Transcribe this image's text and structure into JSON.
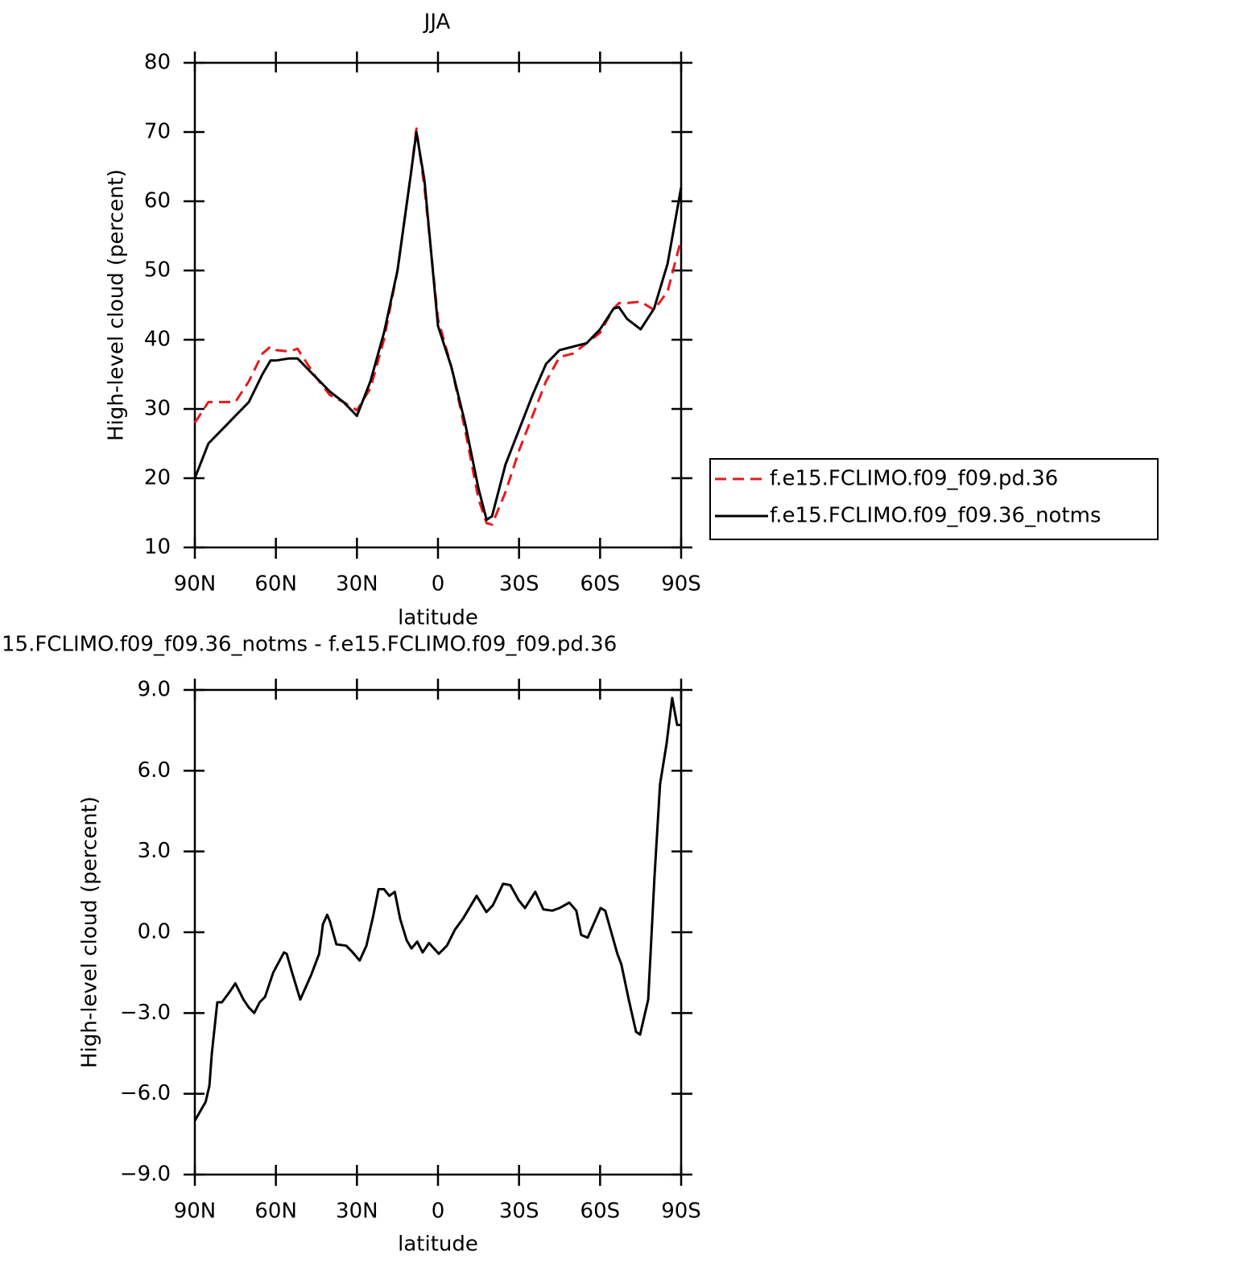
{
  "chart_data": [
    {
      "type": "line",
      "title": "JJA",
      "xlabel": "latitude",
      "ylabel": "High-level cloud (percent)",
      "x": [
        90,
        85,
        80,
        75,
        70,
        65,
        62,
        60,
        55,
        52,
        50,
        45,
        40,
        35,
        30,
        25,
        20,
        15,
        10,
        8,
        5,
        0,
        -5,
        -10,
        -15,
        -18,
        -20,
        -25,
        -30,
        -35,
        -40,
        -45,
        -50,
        -55,
        -60,
        -65,
        -67,
        -70,
        -75,
        -80,
        -85,
        -90
      ],
      "series": [
        {
          "name": "f.e15.FCLIMO.f09_f09.pd.36",
          "color": "#e8191c",
          "line_style": "dashed",
          "values": [
            28,
            31,
            31,
            31,
            34,
            38,
            39,
            38.5,
            38.3,
            38.7,
            37.5,
            34.5,
            32,
            31,
            29.8,
            33,
            40,
            50,
            64,
            70.5,
            62,
            43,
            36,
            27,
            17,
            13.5,
            13.3,
            18,
            24,
            29,
            34,
            37.5,
            38,
            39.5,
            41,
            44.5,
            45.3,
            45.3,
            45.5,
            44.3,
            47,
            54.5
          ]
        },
        {
          "name": "f.e15.FCLIMO.f09_f09.36_notms",
          "color": "#000000",
          "line_style": "solid",
          "values": [
            20,
            25,
            27,
            29,
            31,
            35,
            37,
            37,
            37.3,
            37.3,
            36.5,
            34.5,
            32.5,
            31,
            29,
            34,
            41,
            50,
            64,
            70,
            63,
            42,
            36,
            28,
            18.5,
            14,
            14.5,
            22,
            27,
            32,
            36.5,
            38.5,
            39,
            39.5,
            41.5,
            44.5,
            44.7,
            43,
            41.5,
            44.5,
            51,
            62
          ]
        }
      ],
      "xlim": [
        90,
        -90
      ],
      "xticks": [
        {
          "value": 90,
          "label": "90N"
        },
        {
          "value": 60,
          "label": "60N"
        },
        {
          "value": 30,
          "label": "30N"
        },
        0,
        {
          "value": -30,
          "label": "30S"
        },
        {
          "value": -60,
          "label": "60S"
        },
        {
          "value": -90,
          "label": "90S"
        }
      ],
      "ylim": [
        10,
        80
      ],
      "yticks": [
        10,
        20,
        30,
        40,
        50,
        60,
        70,
        80
      ],
      "legend": "right"
    },
    {
      "type": "line",
      "title": "15.FCLIMO.f09_f09.36_notms - f.e15.FCLIMO.f09_f09.pd.36",
      "xlabel": "latitude",
      "ylabel": "High-level cloud (percent)",
      "x": [
        90,
        86,
        84.6,
        83.7,
        81.7,
        80,
        77,
        75,
        72,
        70,
        68,
        66,
        64,
        61,
        57,
        56,
        54,
        51,
        47,
        44,
        42.6,
        41,
        40,
        37.6,
        34,
        32,
        29,
        26.5,
        24,
        22,
        20,
        18,
        16,
        14,
        11.6,
        9.8,
        7.7,
        5.7,
        3.3,
        -0.3,
        -3.3,
        -6.3,
        -9.2,
        -14.3,
        -17.9,
        -20.3,
        -24.1,
        -26.8,
        -29.8,
        -32.2,
        -36,
        -39,
        -42.3,
        -45,
        -48.6,
        -51.2,
        -53,
        -55.4,
        -60.2,
        -61.9,
        -66.4,
        -67.9,
        -70.6,
        -73.3,
        -74.8,
        -77.8,
        -80.1,
        -82.2,
        -84.6,
        -86.7,
        -88.5,
        -90
      ],
      "series": [
        {
          "color": "#000000",
          "line_style": "solid",
          "values": [
            -7.0,
            -6.3,
            -5.7,
            -4.5,
            -2.6,
            -2.6,
            -2.2,
            -1.9,
            -2.5,
            -2.8,
            -3.0,
            -2.6,
            -2.4,
            -1.5,
            -0.75,
            -0.8,
            -1.5,
            -2.5,
            -1.6,
            -0.8,
            0.3,
            0.65,
            0.4,
            -0.45,
            -0.5,
            -0.7,
            -1.05,
            -0.5,
            0.6,
            1.6,
            1.6,
            1.35,
            1.5,
            0.5,
            -0.3,
            -0.6,
            -0.35,
            -0.75,
            -0.4,
            -0.8,
            -0.5,
            0.1,
            0.5,
            1.35,
            0.75,
            1.0,
            1.8,
            1.75,
            1.2,
            0.9,
            1.5,
            0.85,
            0.8,
            0.9,
            1.1,
            0.8,
            -0.1,
            -0.2,
            0.9,
            0.8,
            -0.8,
            -1.2,
            -2.5,
            -3.7,
            -3.8,
            -2.5,
            2.0,
            5.5,
            7.0,
            8.7,
            7.7,
            7.7
          ]
        }
      ],
      "xlim": [
        90,
        -90
      ],
      "xticks": [
        {
          "value": 90,
          "label": "90N"
        },
        {
          "value": 60,
          "label": "60N"
        },
        {
          "value": 30,
          "label": "30N"
        },
        0,
        {
          "value": -30,
          "label": "30S"
        },
        {
          "value": -60,
          "label": "60S"
        },
        {
          "value": -90,
          "label": "90S"
        }
      ],
      "ylim": [
        -9,
        9
      ],
      "yticks": [
        {
          "value": -9,
          "label": "−9.0"
        },
        {
          "value": -6,
          "label": "−6.0"
        },
        {
          "value": -3,
          "label": "−3.0"
        },
        {
          "value": 0,
          "label": "0.0"
        },
        {
          "value": 3,
          "label": "3.0"
        },
        {
          "value": 6,
          "label": "6.0"
        },
        {
          "value": 9,
          "label": "9.0"
        }
      ]
    }
  ]
}
